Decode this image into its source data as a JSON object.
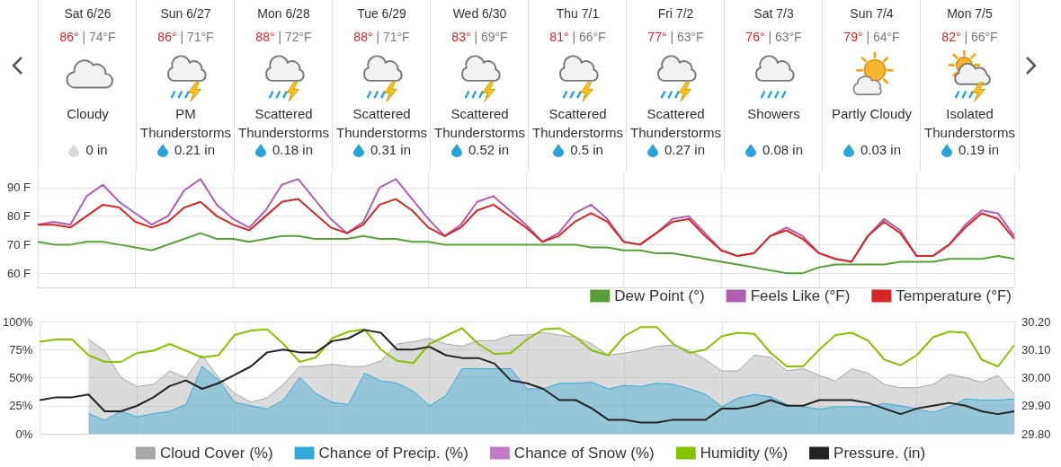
{
  "chart_data": [
    {
      "type": "other",
      "categories": [
        "Sat 6/26",
        "Sun 6/27",
        "Mon 6/28",
        "Tue 6/29",
        "Wed 6/30",
        "Thu 7/1",
        "Fri 7/2",
        "Sat 7/3",
        "Sun 7/4",
        "Mon 7/5"
      ],
      "annotations": [
        "86° | 74°F",
        "Cloudy",
        "0 in",
        "86° | 71°F",
        "PM Thunderstorms",
        "0.21 in",
        "88° | 72°F",
        "Scattered Thunderstorms",
        "0.18 in",
        "88° | 71°F",
        "Scattered Thunderstorms",
        "0.31 in",
        "83° | 69°F",
        "Scattered Thunderstorms",
        "0.52 in",
        "81° | 66°F",
        "Scattered Thunderstorms",
        "0.5 in",
        "77° | 63°F",
        "Scattered Thunderstorms",
        "0.27 in",
        "76° | 63°F",
        "Showers",
        "0.08 in",
        "79° | 64°F",
        "Partly Cloudy",
        "0.03 in",
        "82° | 66°F",
        "Isolated Thunderstorms",
        "0.19 in"
      ]
    },
    {
      "type": "line",
      "categories": [
        null,
        null,
        null,
        null,
        null,
        null,
        null,
        null,
        null,
        null,
        null,
        null,
        null,
        null,
        null,
        null,
        null,
        null,
        null,
        null,
        null,
        null,
        null,
        null,
        null,
        null,
        null,
        null,
        null,
        null,
        null,
        null,
        null,
        null,
        null,
        null,
        null,
        null,
        null,
        null,
        null,
        null,
        null,
        null,
        null,
        null,
        null,
        null,
        null,
        null,
        null,
        null,
        null,
        null,
        null,
        null,
        null,
        null,
        null,
        null,
        null
      ],
      "ylim": [
        55,
        95
      ],
      "yticks": [
        {
          "value": 60,
          "label": "60 F"
        },
        {
          "value": 70,
          "label": "70 F"
        },
        {
          "value": 80,
          "label": "80 F"
        },
        {
          "value": 90,
          "label": "90 F"
        }
      ],
      "grid": true,
      "legend": "bottom right",
      "marker": "none",
      "series": [
        {
          "name": "Dew Point (°)",
          "color": "#5a9e3a",
          "values": [
            71,
            70,
            70,
            71,
            71,
            70,
            69,
            68,
            70,
            72,
            74,
            72,
            72,
            71,
            72,
            73,
            73,
            72,
            72,
            72,
            73,
            72,
            72,
            71,
            71,
            70,
            70,
            70,
            70,
            70,
            70,
            70,
            70,
            70,
            69,
            69,
            68,
            68,
            67,
            67,
            66,
            65,
            64,
            63,
            62,
            61,
            60,
            60,
            62,
            63,
            63,
            63,
            63,
            64,
            64,
            64,
            65,
            65,
            65,
            66,
            65
          ]
        },
        {
          "name": "Feels Like (°F)",
          "color": "#b05fb0",
          "values": [
            77,
            78,
            77,
            87,
            91,
            85,
            81,
            77,
            80,
            89,
            93,
            84,
            79,
            76,
            82,
            91,
            93,
            86,
            79,
            74,
            78,
            90,
            93,
            86,
            79,
            73,
            77,
            85,
            87,
            82,
            77,
            71,
            74,
            81,
            84,
            79,
            71,
            70,
            74,
            79,
            80,
            74,
            68,
            66,
            67,
            73,
            76,
            73,
            67,
            65,
            64,
            73,
            79,
            75,
            66,
            66,
            70,
            77,
            82,
            81,
            73
          ]
        },
        {
          "name": "Temperature (°F)",
          "color": "#d62728",
          "values": [
            77,
            77,
            76,
            80,
            84,
            83,
            78,
            76,
            78,
            83,
            85,
            80,
            77,
            75,
            80,
            85,
            86,
            81,
            76,
            74,
            77,
            84,
            86,
            82,
            76,
            73,
            76,
            82,
            84,
            80,
            76,
            71,
            73,
            78,
            81,
            78,
            71,
            70,
            74,
            78,
            79,
            73,
            68,
            66,
            67,
            73,
            75,
            72,
            67,
            65,
            64,
            73,
            78,
            74,
            66,
            66,
            70,
            76,
            81,
            79,
            72
          ]
        }
      ]
    },
    {
      "type": "line",
      "categories": [
        null,
        null,
        null,
        null,
        null,
        null,
        null,
        null,
        null,
        null,
        null,
        null,
        null,
        null,
        null,
        null,
        null,
        null,
        null,
        null,
        null,
        null,
        null,
        null,
        null,
        null,
        null,
        null,
        null,
        null,
        null,
        null,
        null,
        null,
        null,
        null,
        null,
        null,
        null,
        null,
        null,
        null,
        null,
        null,
        null,
        null,
        null,
        null,
        null,
        null,
        null,
        null,
        null,
        null,
        null,
        null,
        null,
        null,
        null,
        null,
        null
      ],
      "ylim": [
        0,
        100
      ],
      "yticks": [
        {
          "value": 0,
          "label": "0%"
        },
        {
          "value": 25,
          "label": "25%"
        },
        {
          "value": 50,
          "label": "50%"
        },
        {
          "value": 75,
          "label": "75%"
        },
        {
          "value": 100,
          "label": "100%"
        }
      ],
      "y2lim": [
        29.8,
        30.2
      ],
      "y2ticks": [
        {
          "value": 29.8,
          "label": "29.80"
        },
        {
          "value": 29.9,
          "label": "29.90"
        },
        {
          "value": 30.0,
          "label": "30.00"
        },
        {
          "value": 30.1,
          "label": "30.10"
        },
        {
          "value": 30.2,
          "label": "30.20"
        }
      ],
      "grid": true,
      "legend": "bottom",
      "marker": "none",
      "series": [
        {
          "name": "Cloud Cover (%)",
          "type": "area",
          "color": "#a6a6a6",
          "values": [
            null,
            null,
            null,
            84,
            74,
            50,
            42,
            44,
            56,
            50,
            70,
            50,
            36,
            28,
            32,
            44,
            60,
            60,
            62,
            60,
            60,
            65,
            80,
            82,
            85,
            80,
            78,
            83,
            83,
            88,
            88,
            90,
            88,
            86,
            80,
            70,
            72,
            74,
            78,
            79,
            74,
            66,
            56,
            56,
            70,
            68,
            56,
            58,
            52,
            47,
            58,
            54,
            44,
            41,
            41,
            44,
            53,
            50,
            46,
            52,
            35
          ]
        },
        {
          "name": "Chance of Precip. (%)",
          "type": "area",
          "color": "#34a8d8",
          "values": [
            null,
            null,
            null,
            18,
            12,
            20,
            15,
            18,
            20,
            26,
            60,
            48,
            28,
            25,
            22,
            30,
            50,
            36,
            28,
            26,
            54,
            47,
            45,
            38,
            25,
            34,
            58,
            58,
            58,
            58,
            40,
            40,
            45,
            45,
            46,
            40,
            43,
            42,
            45,
            44,
            40,
            35,
            24,
            32,
            35,
            33,
            26,
            24,
            22,
            24,
            24,
            24,
            27,
            25,
            22,
            19,
            24,
            31,
            30,
            30,
            31
          ]
        },
        {
          "name": "Chance of Snow (%)",
          "type": "area",
          "color": "#c37cc3",
          "values": [
            null,
            null,
            null,
            null,
            null,
            null,
            null,
            null,
            null,
            null,
            null,
            null,
            null,
            null,
            null,
            null,
            null,
            null,
            null,
            null,
            null,
            null,
            null,
            null,
            null,
            null,
            null,
            null,
            null,
            null,
            null,
            null,
            null,
            null,
            null,
            null,
            null,
            null,
            null,
            null,
            null,
            null,
            null,
            null,
            null,
            null,
            null,
            null,
            null,
            null,
            null,
            null,
            null,
            null,
            null,
            null,
            null,
            null,
            null,
            null,
            null
          ]
        },
        {
          "name": "Humidity (%)",
          "type": "line",
          "color": "#88c100",
          "values": [
            82,
            84,
            84,
            70,
            64,
            64,
            72,
            74,
            80,
            74,
            68,
            70,
            88,
            92,
            93,
            80,
            64,
            68,
            85,
            91,
            93,
            75,
            65,
            63,
            80,
            87,
            94,
            80,
            71,
            72,
            84,
            93,
            94,
            86,
            74,
            70,
            87,
            95,
            95,
            80,
            72,
            75,
            87,
            90,
            89,
            72,
            60,
            60,
            75,
            88,
            90,
            83,
            66,
            61,
            70,
            86,
            91,
            90,
            66,
            60,
            79
          ]
        },
        {
          "name": "Pressure. (in)",
          "type": "line",
          "axis": "y2",
          "color": "#222222",
          "values": [
            29.92,
            29.93,
            29.93,
            29.94,
            29.88,
            29.88,
            29.9,
            29.93,
            29.97,
            29.99,
            29.96,
            29.98,
            30.01,
            30.04,
            30.09,
            30.1,
            30.09,
            30.09,
            30.13,
            30.14,
            30.17,
            30.16,
            30.1,
            30.1,
            30.11,
            30.08,
            30.07,
            30.07,
            30.05,
            29.99,
            29.98,
            29.96,
            29.92,
            29.92,
            29.89,
            29.85,
            29.85,
            29.84,
            29.84,
            29.85,
            29.85,
            29.85,
            29.89,
            29.89,
            29.9,
            29.92,
            29.9,
            29.9,
            29.92,
            29.92,
            29.92,
            29.91,
            29.89,
            29.87,
            29.89,
            29.9,
            29.91,
            29.9,
            29.88,
            29.87,
            29.88
          ]
        }
      ]
    }
  ]
}
